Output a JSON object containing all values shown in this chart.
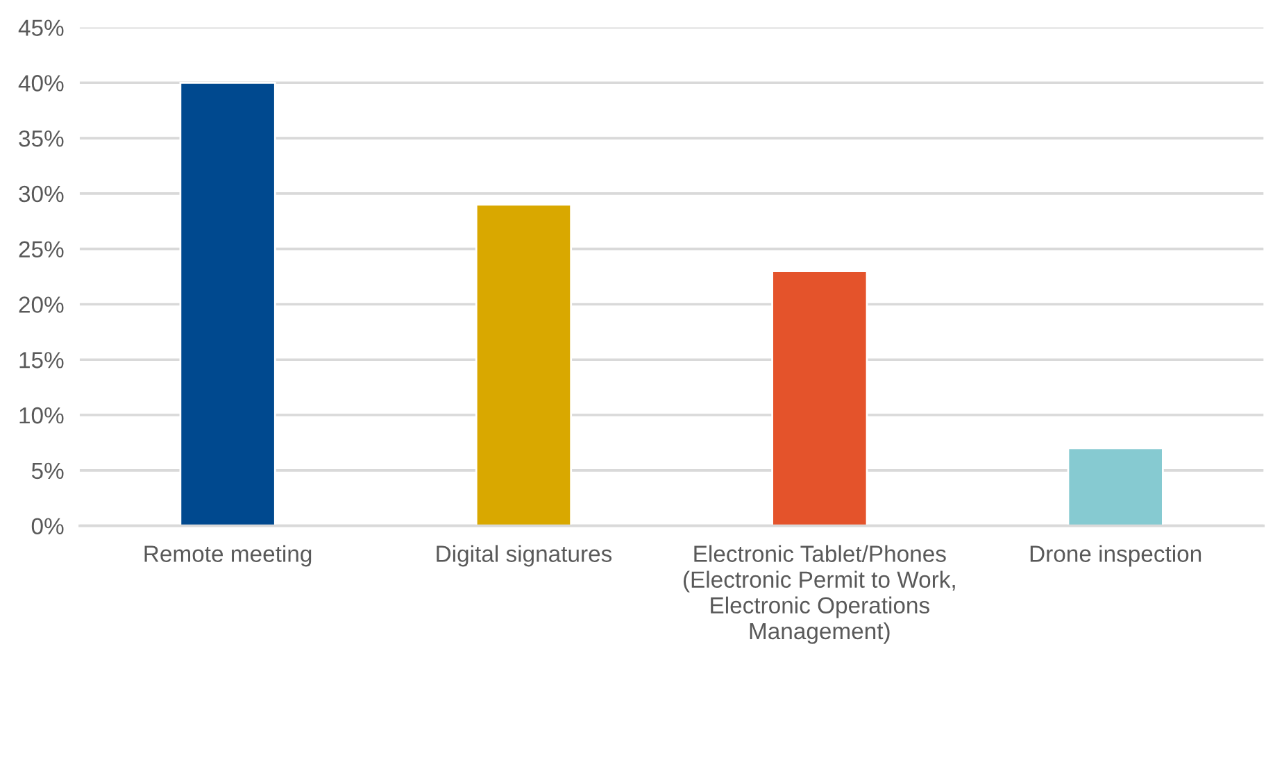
{
  "chart_data": {
    "type": "bar",
    "categories": [
      "Remote meeting",
      "Digital signatures",
      "Electronic Tablet/Phones (Electronic Permit to Work, Electronic Operations Management)",
      "Drone inspection"
    ],
    "values": [
      40,
      29,
      23,
      7
    ],
    "colors": [
      "#00498f",
      "#d9a800",
      "#e4532b",
      "#86cad1"
    ],
    "ylim": [
      0,
      45
    ],
    "yticks": [
      {
        "value": 0,
        "label": "0%"
      },
      {
        "value": 5,
        "label": "5%"
      },
      {
        "value": 10,
        "label": "10%"
      },
      {
        "value": 15,
        "label": "15%"
      },
      {
        "value": 20,
        "label": "20%"
      },
      {
        "value": 25,
        "label": "25%"
      },
      {
        "value": 30,
        "label": "30%"
      },
      {
        "value": 35,
        "label": "35%"
      },
      {
        "value": 40,
        "label": "40%"
      },
      {
        "value": 45,
        "label": "45%"
      }
    ],
    "grid": "y"
  }
}
